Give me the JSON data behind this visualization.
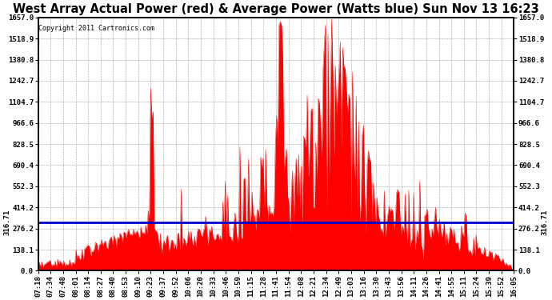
{
  "title": "West Array Actual Power (red) & Average Power (Watts blue) Sun Nov 13 16:23",
  "copyright": "Copyright 2011 Cartronics.com",
  "avg_power": 316.71,
  "ymax": 1657.0,
  "ymin": 0.0,
  "yticks": [
    0.0,
    138.1,
    276.2,
    414.2,
    552.3,
    690.4,
    828.5,
    966.6,
    1104.7,
    1242.7,
    1380.8,
    1518.9,
    1657.0
  ],
  "xtick_labels": [
    "07:18",
    "07:34",
    "07:48",
    "08:01",
    "08:14",
    "08:27",
    "08:40",
    "08:53",
    "09:10",
    "09:23",
    "09:37",
    "09:52",
    "10:06",
    "10:20",
    "10:33",
    "10:46",
    "10:59",
    "11:15",
    "11:28",
    "11:41",
    "11:54",
    "12:08",
    "12:21",
    "12:34",
    "12:49",
    "13:03",
    "13:16",
    "13:30",
    "13:43",
    "13:56",
    "14:11",
    "14:26",
    "14:41",
    "14:55",
    "15:11",
    "15:24",
    "15:39",
    "15:52",
    "16:05"
  ],
  "background_color": "#ffffff",
  "grid_color": "#888888",
  "red_color": "#ff0000",
  "blue_color": "#0000cc",
  "title_fontsize": 10.5,
  "tick_fontsize": 6.5,
  "copyright_fontsize": 6
}
